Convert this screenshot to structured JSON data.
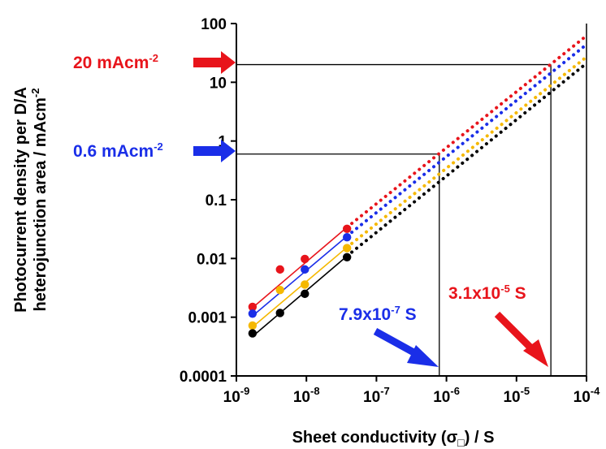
{
  "chart_data": {
    "type": "scatter",
    "xscale": "log",
    "yscale": "log",
    "xlim": [
      1e-09,
      0.0001
    ],
    "ylim": [
      0.0001,
      100
    ],
    "x_ticks": [
      {
        "value": 1e-09,
        "base": "10",
        "exp": "-9"
      },
      {
        "value": 1e-08,
        "base": "10",
        "exp": "-8"
      },
      {
        "value": 1e-07,
        "base": "10",
        "exp": "-7"
      },
      {
        "value": 1e-06,
        "base": "10",
        "exp": "-6"
      },
      {
        "value": 1e-05,
        "base": "10",
        "exp": "-5"
      },
      {
        "value": 0.0001,
        "base": "10",
        "exp": "-4"
      }
    ],
    "y_ticks": [
      {
        "value": 0.0001,
        "label": "0.0001"
      },
      {
        "value": 0.001,
        "label": "0.001"
      },
      {
        "value": 0.01,
        "label": "0.01"
      },
      {
        "value": 0.1,
        "label": "0.1"
      },
      {
        "value": 1,
        "label": "1"
      },
      {
        "value": 10,
        "label": "10"
      },
      {
        "value": 100,
        "label": "100"
      }
    ],
    "xlabel": {
      "main": "Sheet conductivity (σ",
      "sub": "□",
      "suffix": ") / S"
    },
    "ylabel": {
      "line1": "Photocurrent density per D/A",
      "line2": "heterojunction area / mAcm",
      "line2_sup": "-2"
    },
    "grid": false,
    "legend": "none",
    "series": [
      {
        "color": "#e8141b",
        "points": [
          [
            1.7e-09,
            0.0015
          ],
          [
            4.2e-09,
            0.0065
          ],
          [
            9.5e-09,
            0.0098
          ],
          [
            3.8e-08,
            0.032
          ]
        ],
        "fit": [
          [
            1.7e-09,
            0.00145
          ],
          [
            3.8e-08,
            0.034
          ]
        ],
        "extrapolation": [
          [
            3.8e-08,
            0.034
          ],
          [
            0.0001,
            62
          ]
        ]
      },
      {
        "color": "#1a2ee8",
        "points": [
          [
            1.7e-09,
            0.00115
          ],
          [
            9.5e-09,
            0.0065
          ],
          [
            3.8e-08,
            0.023
          ]
        ],
        "fit": [
          [
            1.7e-09,
            0.00105
          ],
          [
            3.8e-08,
            0.024
          ]
        ],
        "extrapolation": [
          [
            3.8e-08,
            0.024
          ],
          [
            0.0001,
            44
          ]
        ]
      },
      {
        "color": "#f5b800",
        "points": [
          [
            1.7e-09,
            0.00072
          ],
          [
            4.2e-09,
            0.0029
          ],
          [
            9.5e-09,
            0.0036
          ],
          [
            3.8e-08,
            0.015
          ]
        ],
        "fit": [
          [
            1.7e-09,
            0.00068
          ],
          [
            3.8e-08,
            0.0155
          ]
        ],
        "extrapolation": [
          [
            3.8e-08,
            0.0155
          ],
          [
            0.0001,
            27
          ]
        ]
      },
      {
        "color": "#000000",
        "points": [
          [
            1.7e-09,
            0.00053
          ],
          [
            4.2e-09,
            0.00118
          ],
          [
            9.5e-09,
            0.0025
          ],
          [
            3.8e-08,
            0.0105
          ]
        ],
        "fit": [
          [
            1.7e-09,
            0.00047
          ],
          [
            3.8e-08,
            0.011
          ]
        ],
        "extrapolation": [
          [
            3.8e-08,
            0.011
          ],
          [
            0.0001,
            21
          ]
        ]
      }
    ],
    "reference_lines": [
      {
        "name": "20-macm2",
        "y": 20,
        "x": 3.1e-05
      },
      {
        "name": "0.6-macm2",
        "y": 0.6,
        "x": 7.9e-07
      }
    ],
    "annotations": {
      "y_red": {
        "text": "20 mAcm",
        "sup": "-2",
        "color": "#e8141b"
      },
      "y_blue": {
        "text": "0.6 mAcm",
        "sup": "-2",
        "color": "#1a2ee8"
      },
      "x_blue": {
        "text_pre": "7.9x10",
        "sup": "-7",
        "text_post": " S",
        "color": "#1a2ee8"
      },
      "x_red": {
        "text_pre": "3.1x10",
        "sup": "-5",
        "text_post": " S",
        "color": "#e8141b"
      }
    }
  }
}
